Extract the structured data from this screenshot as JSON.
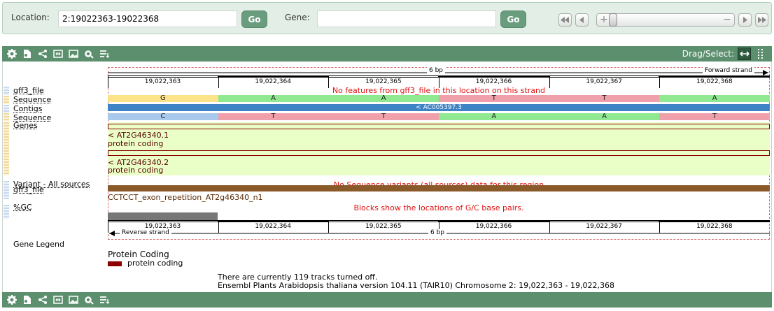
{
  "search": {
    "location_label": "Location:",
    "location_value": "2:19022363-19022368",
    "go_label": "Go",
    "gene_label": "Gene:",
    "gene_value": ""
  },
  "toolbar": {
    "drag_select_label": "Drag/Select:"
  },
  "ruler": {
    "width_label": "6 bp",
    "forward_strand": "Forward strand",
    "reverse_strand": "Reverse strand",
    "positions": [
      "19,022,363",
      "19,022,364",
      "19,022,365",
      "19,022,366",
      "19,022,367",
      "19,022,368"
    ]
  },
  "tracks": {
    "gff3_file": "gff3_file",
    "sequence_fwd": "Sequence",
    "contigs": "Contigs",
    "sequence_rev": "Sequence",
    "genes": "Genes",
    "variant": "Variant - All sources",
    "gff3_file_rev": "gff3_file",
    "gc": "%GC",
    "gene_legend": "Gene Legend"
  },
  "messages": {
    "no_gff3": "No features from gff3_file in this location on this strand",
    "no_variants": "No Sequence variants (all sources) data for this region",
    "gc_blocks": "Blocks show the locations of G/C base pairs."
  },
  "sequence_fwd": [
    "G",
    "A",
    "A",
    "T",
    "T",
    "A"
  ],
  "sequence_rev": [
    "C",
    "T",
    "T",
    "A",
    "A",
    "T"
  ],
  "contig_label": "< AC005397.3",
  "genes": [
    {
      "name": "< AT2G46340.1",
      "biotype": "protein coding"
    },
    {
      "name": "< AT2G46340.2",
      "biotype": "protein coding"
    }
  ],
  "gff3_feature": "CCTCCT_exon_repetition_AT2g46340_n1",
  "legend": {
    "title": "Protein Coding",
    "item": "protein coding"
  },
  "info": {
    "tracks_off": "There are currently 119 tracks turned off.",
    "version": "Ensembl Plants Arabidopsis thaliana version 104.11 (TAIR10) Chromosome 2: 19,022,363 - 19,022,368"
  },
  "colors": {
    "base_A": "#90e890",
    "base_T": "#f0a0aa",
    "base_G": "#fce38a",
    "base_C": "#a8c8ec",
    "contig": "#3d83c6",
    "gene_bg": "#eaffc8",
    "gene_border": "#8b0000",
    "gff3": "#8b5a2b",
    "gc": "#777777",
    "toolbar": "#5c8f6e"
  }
}
